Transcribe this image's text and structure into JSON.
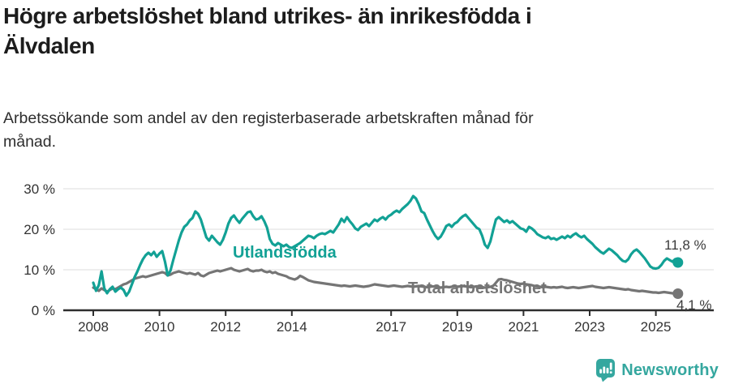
{
  "header": {
    "title": "Högre arbetslöshet bland utrikes- än inrikesfödda i Älvdalen",
    "title_lines": [
      "Högre arbetslöshet bland utrikes- än inrikesfödda i",
      "Älvdalen"
    ],
    "subtitle": "Arbetssökande som andel av den registerbaserade arbetskraften månad för månad.",
    "subtitle_lines": [
      "Arbetssökande som andel av den registerbaserade arbetskraften månad för",
      "månad."
    ]
  },
  "footer": {
    "brand": "Newsworthy"
  },
  "colors": {
    "series_foreign_born": "#12a195",
    "series_total": "#757575",
    "logo_teal": "#35a79f",
    "grid": "#dcdcdc",
    "axis": "#2e2e2e",
    "text": "#1c1c1c"
  },
  "chart_data": {
    "type": "line",
    "title": "Högre arbetslöshet bland utrikes- än inrikesfödda i Älvdalen",
    "subtitle": "Arbetssökande som andel av den registerbaserade arbetskraften månad för månad.",
    "x_unit": "month",
    "x_range": [
      "2008-01",
      "2025-09"
    ],
    "ylim": [
      0,
      30
    ],
    "grid": "horizontal",
    "legend_position": "inline-labels",
    "y_ticks": [
      {
        "value": 30,
        "label": "30 %"
      },
      {
        "value": 20,
        "label": "20 %"
      },
      {
        "value": 10,
        "label": "10 %"
      },
      {
        "value": 0,
        "label": "0 %"
      }
    ],
    "x_ticks": [
      {
        "year": 2008,
        "label": "2008"
      },
      {
        "year": 2010,
        "label": "2010"
      },
      {
        "year": 2012,
        "label": "2012"
      },
      {
        "year": 2014,
        "label": "2014"
      },
      {
        "year": 2017,
        "label": "2017"
      },
      {
        "year": 2019,
        "label": "2019"
      },
      {
        "year": 2021,
        "label": "2021"
      },
      {
        "year": 2023,
        "label": "2023"
      },
      {
        "year": 2025,
        "label": "2025"
      }
    ],
    "series": [
      {
        "name": "Utlandsfödda",
        "color": "#12a195",
        "end_label": "11,8 %",
        "end_value": 11.8,
        "values": [
          6.8,
          4.8,
          6.2,
          9.6,
          5.4,
          4.2,
          5.2,
          5.8,
          4.6,
          5.2,
          5.6,
          5.0,
          3.6,
          4.6,
          6.4,
          8.2,
          9.6,
          11.2,
          12.6,
          13.6,
          14.2,
          13.6,
          14.4,
          13.2,
          14.0,
          14.6,
          12.0,
          8.6,
          9.8,
          12.4,
          14.8,
          17.2,
          19.2,
          20.6,
          21.2,
          22.2,
          22.8,
          24.4,
          23.8,
          22.4,
          20.2,
          18.0,
          17.2,
          18.4,
          17.6,
          16.8,
          16.2,
          17.4,
          19.2,
          21.4,
          22.8,
          23.4,
          22.4,
          21.6,
          22.6,
          23.4,
          24.2,
          24.4,
          23.2,
          22.4,
          22.6,
          23.2,
          22.0,
          20.4,
          17.6,
          16.4,
          16.0,
          16.6,
          16.2,
          15.8,
          16.2,
          15.6,
          15.4,
          15.8,
          16.2,
          16.6,
          17.2,
          17.8,
          18.4,
          18.2,
          17.8,
          18.4,
          18.8,
          19.0,
          18.8,
          19.2,
          19.6,
          19.2,
          20.2,
          21.2,
          22.6,
          21.8,
          23.0,
          22.0,
          21.2,
          20.2,
          19.8,
          20.6,
          21.0,
          21.4,
          20.8,
          21.6,
          22.4,
          22.0,
          22.6,
          23.0,
          22.4,
          23.2,
          23.6,
          24.2,
          24.6,
          24.2,
          25.0,
          25.6,
          26.2,
          27.0,
          28.2,
          27.6,
          26.2,
          24.4,
          24.0,
          22.4,
          21.0,
          19.6,
          18.4,
          17.6,
          18.2,
          19.4,
          20.8,
          21.2,
          20.6,
          21.4,
          21.8,
          22.6,
          23.2,
          23.6,
          22.8,
          22.0,
          21.2,
          20.4,
          20.0,
          18.4,
          16.2,
          15.4,
          17.0,
          19.8,
          22.4,
          23.0,
          22.4,
          21.8,
          22.2,
          21.6,
          22.0,
          21.4,
          20.8,
          20.2,
          20.0,
          19.4,
          20.6,
          20.2,
          19.6,
          18.8,
          18.4,
          18.0,
          17.8,
          18.2,
          17.6,
          17.8,
          17.4,
          17.8,
          18.2,
          17.8,
          18.4,
          18.0,
          18.6,
          19.0,
          18.4,
          18.0,
          18.4,
          17.6,
          17.0,
          16.4,
          15.6,
          15.0,
          14.4,
          14.0,
          14.6,
          15.2,
          14.8,
          14.2,
          13.6,
          12.8,
          12.2,
          12.0,
          12.6,
          13.8,
          14.6,
          15.0,
          14.4,
          13.6,
          12.8,
          11.8,
          10.8,
          10.4,
          10.3,
          10.5,
          11.2,
          12.2,
          12.8,
          12.4,
          12.0,
          12.6,
          11.8
        ]
      },
      {
        "name": "Total arbetslöshet",
        "color": "#757575",
        "end_label": "4,1 %",
        "end_value": 4.1,
        "values": [
          5.6,
          5.2,
          4.8,
          5.4,
          5.0,
          4.6,
          5.0,
          5.4,
          5.2,
          5.6,
          6.0,
          6.4,
          6.6,
          7.0,
          7.4,
          7.8,
          8.0,
          8.2,
          8.4,
          8.2,
          8.4,
          8.6,
          8.8,
          9.0,
          9.2,
          9.4,
          9.2,
          8.6,
          8.8,
          9.2,
          9.4,
          9.6,
          9.4,
          9.2,
          9.0,
          9.2,
          9.0,
          8.8,
          9.2,
          8.6,
          8.4,
          8.8,
          9.2,
          9.4,
          9.6,
          9.8,
          9.6,
          9.8,
          10.0,
          10.2,
          10.4,
          10.0,
          9.8,
          9.6,
          9.8,
          10.0,
          10.2,
          9.8,
          9.6,
          9.8,
          9.8,
          10.0,
          9.6,
          9.4,
          9.6,
          9.2,
          9.4,
          9.0,
          8.8,
          8.6,
          8.4,
          8.0,
          7.8,
          7.6,
          7.9,
          8.5,
          8.2,
          7.8,
          7.4,
          7.2,
          7.0,
          6.9,
          6.8,
          6.7,
          6.6,
          6.5,
          6.4,
          6.3,
          6.2,
          6.1,
          6.0,
          6.1,
          6.0,
          5.9,
          6.0,
          6.1,
          6.0,
          5.9,
          5.8,
          5.9,
          6.0,
          6.2,
          6.4,
          6.3,
          6.2,
          6.1,
          6.0,
          5.9,
          6.0,
          6.1,
          6.0,
          5.9,
          5.8,
          5.9,
          6.0,
          5.9,
          5.8,
          5.9,
          6.0,
          5.9,
          5.8,
          5.7,
          5.8,
          5.9,
          5.8,
          5.7,
          5.6,
          5.7,
          5.8,
          5.7,
          5.8,
          5.9,
          5.8,
          5.9,
          6.0,
          5.9,
          5.8,
          5.7,
          5.8,
          5.9,
          5.8,
          5.7,
          5.6,
          5.7,
          5.8,
          6.0,
          6.8,
          7.6,
          7.7,
          7.5,
          7.4,
          7.2,
          7.0,
          6.8,
          6.6,
          6.5,
          6.6,
          6.4,
          6.3,
          6.2,
          6.0,
          5.9,
          5.8,
          5.7,
          5.8,
          5.7,
          5.6,
          5.7,
          5.6,
          5.7,
          5.8,
          5.6,
          5.5,
          5.6,
          5.7,
          5.6,
          5.5,
          5.6,
          5.7,
          5.8,
          5.9,
          6.0,
          5.8,
          5.7,
          5.6,
          5.5,
          5.6,
          5.7,
          5.6,
          5.5,
          5.4,
          5.3,
          5.2,
          5.1,
          5.2,
          5.0,
          4.9,
          4.8,
          4.7,
          4.8,
          4.7,
          4.6,
          4.5,
          4.4,
          4.4,
          4.3,
          4.4,
          4.5,
          4.4,
          4.3,
          4.2,
          4.2,
          4.1
        ]
      }
    ]
  }
}
